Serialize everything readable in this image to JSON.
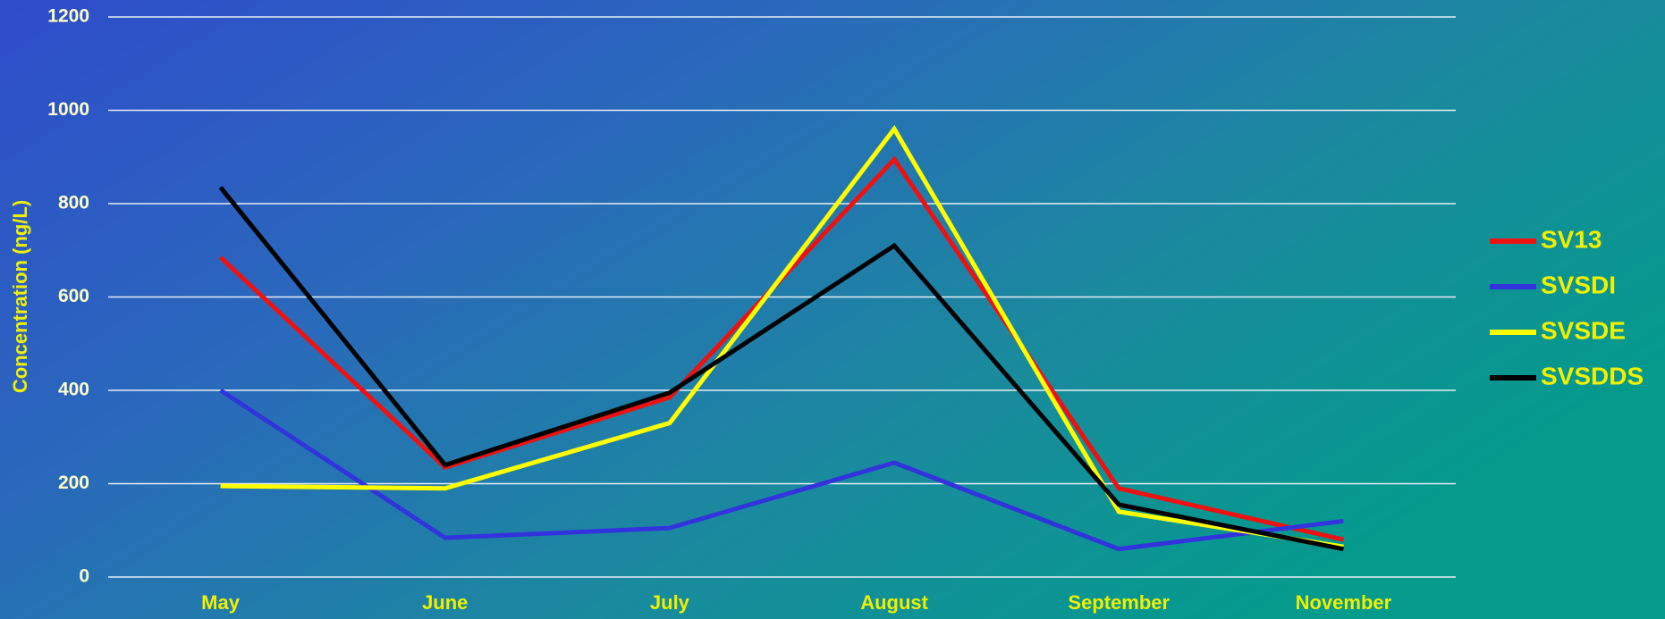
{
  "chart_data": {
    "type": "line",
    "y_label": "Concentration (ng/L)",
    "categories": [
      "May",
      "June",
      "July",
      "August",
      "September",
      "November"
    ],
    "series": [
      {
        "name": "SV13",
        "color": "#ee1111",
        "values": [
          685,
          235,
          385,
          895,
          190,
          80
        ]
      },
      {
        "name": "SVSDI",
        "color": "#3333dd",
        "values": [
          400,
          84,
          105,
          245,
          60,
          120
        ]
      },
      {
        "name": "SVSDE",
        "color": "#ffff00",
        "values": [
          195,
          190,
          330,
          960,
          140,
          65
        ]
      },
      {
        "name": "SVSDDS",
        "color": "#000000",
        "values": [
          835,
          240,
          395,
          710,
          155,
          60
        ]
      }
    ],
    "ylim": [
      0,
      1200
    ],
    "yticks": [
      0,
      200,
      400,
      600,
      800,
      1000,
      1200
    ],
    "grid": true,
    "legend": "right"
  }
}
